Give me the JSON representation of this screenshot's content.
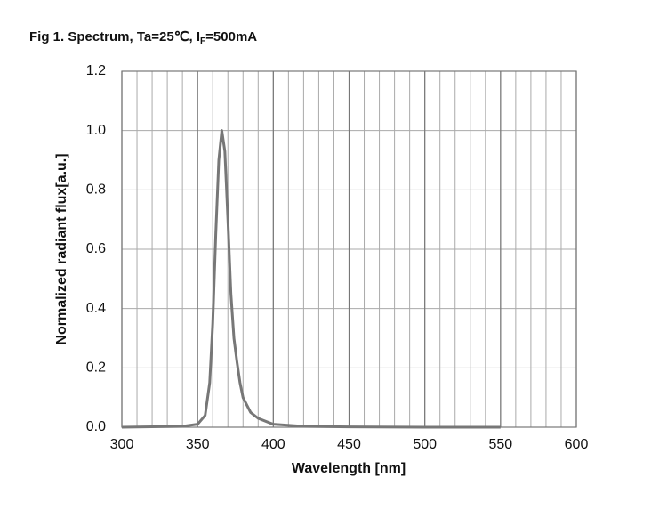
{
  "chart_data": {
    "type": "line",
    "title": [
      "Fig 1. Spectrum, Ta=25℃, I",
      "F",
      "=500mA"
    ],
    "x_label": "Wavelength [nm]",
    "y_label": "Normalized radiant flux[a.u.]",
    "x": [
      300,
      340,
      350,
      355,
      358,
      359,
      360,
      362,
      364,
      366,
      368,
      370,
      372,
      374,
      376,
      378,
      380,
      385,
      390,
      400,
      420,
      450,
      500,
      550
    ],
    "values": [
      0,
      0.003,
      0.01,
      0.04,
      0.15,
      0.25,
      0.35,
      0.65,
      0.9,
      1.0,
      0.93,
      0.7,
      0.45,
      0.3,
      0.22,
      0.15,
      0.1,
      0.05,
      0.03,
      0.01,
      0.003,
      0.001,
      0,
      0
    ],
    "color": "#777777",
    "xlim": [
      300,
      600
    ],
    "ylim": [
      0,
      1.2
    ],
    "xticks": [
      300,
      350,
      400,
      450,
      500,
      550,
      600
    ],
    "xgrid": [
      300,
      310,
      320,
      330,
      340,
      350,
      360,
      370,
      380,
      390,
      400,
      410,
      420,
      430,
      440,
      450,
      460,
      470,
      480,
      490,
      500,
      510,
      520,
      530,
      540,
      550,
      560,
      570,
      580,
      590,
      600
    ],
    "yticks": [
      {
        "value": 0,
        "label": "0.0"
      },
      0.2,
      0.4,
      0.6,
      0.8,
      {
        "value": 1,
        "label": "1.0"
      },
      1.2
    ],
    "grid": true
  }
}
